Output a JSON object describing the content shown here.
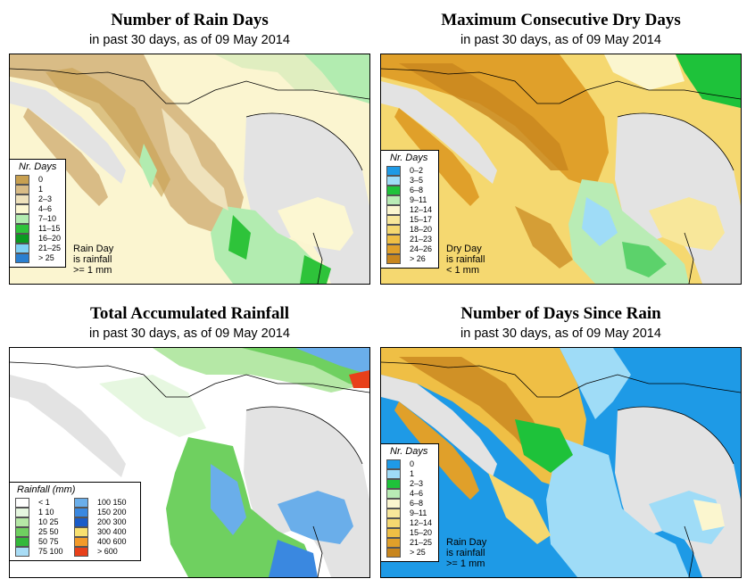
{
  "panels": [
    {
      "title": "Number of Rain Days",
      "subtitle": "in past 30 days, as of  09 May 2014",
      "legend_title": "Nr. Days",
      "legend": [
        {
          "label": "0",
          "color": "#c8a050"
        },
        {
          "label": "1",
          "color": "#d9bc86"
        },
        {
          "label": "2–3",
          "color": "#efe2bc"
        },
        {
          "label": "4–6",
          "color": "#fcf7d2"
        },
        {
          "label": "7–10",
          "color": "#b2ecb0"
        },
        {
          "label": "11–15",
          "color": "#2ec33a"
        },
        {
          "label": "16–20",
          "color": "#0a9a20"
        },
        {
          "label": "21–25",
          "color": "#7fd0f5"
        },
        {
          "label": "> 25",
          "color": "#2a7fd0"
        }
      ],
      "note": [
        "Rain Day",
        "is rainfall",
        ">= 1 mm"
      ]
    },
    {
      "title": "Maximum Consecutive Dry Days",
      "subtitle": "in past 30 days, as of  09 May 2014",
      "legend_title": "Nr. Days",
      "legend": [
        {
          "label": "0–2",
          "color": "#1e9ae6"
        },
        {
          "label": "3–5",
          "color": "#9fdcf7"
        },
        {
          "label": "6–8",
          "color": "#1ec23a"
        },
        {
          "label": "9–11",
          "color": "#b9ecb5"
        },
        {
          "label": "12–14",
          "color": "#fbf6cf"
        },
        {
          "label": "15–17",
          "color": "#f8e79a"
        },
        {
          "label": "18–20",
          "color": "#f5d870"
        },
        {
          "label": "21–23",
          "color": "#efbf45"
        },
        {
          "label": "24–26",
          "color": "#e0a02a"
        },
        {
          "label": "> 26",
          "color": "#c8861e"
        }
      ],
      "note": [
        "Dry Day",
        "is rainfall",
        "< 1 mm"
      ]
    },
    {
      "title": "Total Accumulated Rainfall",
      "subtitle": "in past 30 days, as of  09 May 2014",
      "legend_title": "Rainfall (mm)",
      "legend_left": [
        {
          "label": "< 1",
          "color": "#ffffff"
        },
        {
          "label": "1   10",
          "color": "#e6f7e0"
        },
        {
          "label": "10   25",
          "color": "#b5e8a6"
        },
        {
          "label": "25   50",
          "color": "#6fd060"
        },
        {
          "label": "50   75",
          "color": "#34b83a"
        },
        {
          "label": "75   100",
          "color": "#a8dcf5"
        }
      ],
      "legend_right": [
        {
          "label": "100   150",
          "color": "#6aaeea"
        },
        {
          "label": "150   200",
          "color": "#3a88e0"
        },
        {
          "label": "200   300",
          "color": "#1a5cc8"
        },
        {
          "label": "300   400",
          "color": "#f8e070"
        },
        {
          "label": "400   600",
          "color": "#f39a2a"
        },
        {
          "label": "> 600",
          "color": "#e8401a"
        }
      ]
    },
    {
      "title": "Number of Days Since Rain",
      "subtitle": "in past 30 days, as of  09 May 2014",
      "legend_title": "Nr. Days",
      "legend": [
        {
          "label": "0",
          "color": "#1e9ae6"
        },
        {
          "label": "1",
          "color": "#9fdcf7"
        },
        {
          "label": "2–3",
          "color": "#1ec23a"
        },
        {
          "label": "4–6",
          "color": "#b9ecb5"
        },
        {
          "label": "6–8",
          "color": "#fbf6cf"
        },
        {
          "label": "9–11",
          "color": "#f8e79a"
        },
        {
          "label": "12–14",
          "color": "#f5d870"
        },
        {
          "label": "15–20",
          "color": "#efbf45"
        },
        {
          "label": "21–25",
          "color": "#e0a02a"
        },
        {
          "label": "> 25",
          "color": "#c8861e"
        }
      ],
      "note": [
        "Rain Day",
        "is rainfall",
        ">= 1 mm"
      ]
    }
  ]
}
